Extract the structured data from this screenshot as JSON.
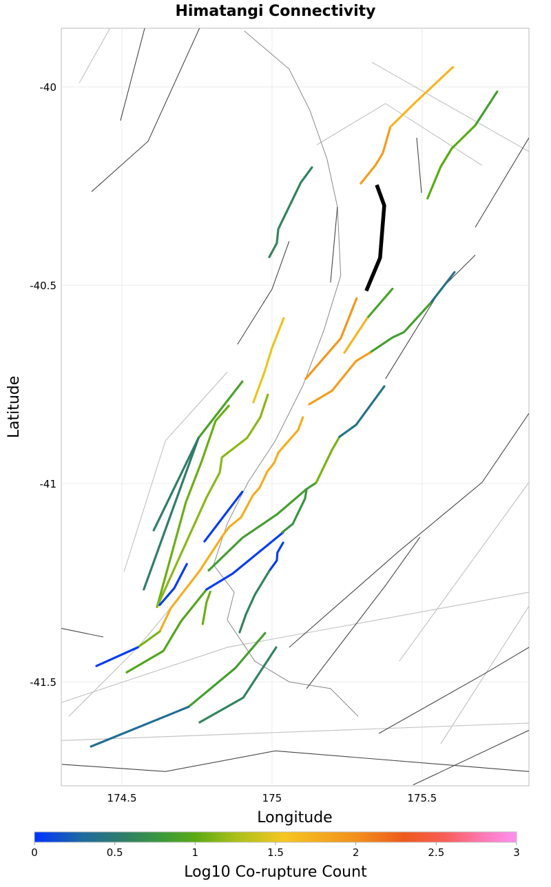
{
  "chart_data": {
    "type": "map",
    "title": "Himatangi Connectivity",
    "xlabel": "Longitude",
    "ylabel": "Latitude",
    "xlim": [
      174.298,
      175.856
    ],
    "ylim": [
      -41.762,
      -39.852
    ],
    "grid": true,
    "xticks": [
      {
        "value": 174.5,
        "label": "174.5"
      },
      {
        "value": 175,
        "label": "175"
      },
      {
        "value": 175.5,
        "label": "175.5"
      }
    ],
    "yticks": [
      {
        "value": -40,
        "label": "-40"
      },
      {
        "value": -40.5,
        "label": "-40.5"
      },
      {
        "value": -41,
        "label": "-41"
      },
      {
        "value": -41.5,
        "label": "-41.5"
      }
    ],
    "colorbar": {
      "label": "Log10 Co-rupture Count",
      "range": [
        0,
        3
      ],
      "placement": "bottom",
      "ticks": [
        {
          "value": 0,
          "label": "0"
        },
        {
          "value": 0.5,
          "label": "0.5"
        },
        {
          "value": 1,
          "label": "1"
        },
        {
          "value": 1.5,
          "label": "1.5"
        },
        {
          "value": 2,
          "label": "2"
        },
        {
          "value": 2.5,
          "label": "2.5"
        },
        {
          "value": 3,
          "label": "3"
        }
      ],
      "stops": [
        {
          "v": 0,
          "color": "#0033ff"
        },
        {
          "v": 0.3,
          "color": "#1f6a9e"
        },
        {
          "v": 0.55,
          "color": "#2f7d68"
        },
        {
          "v": 0.8,
          "color": "#3c9a38"
        },
        {
          "v": 1.0,
          "color": "#5aaa12"
        },
        {
          "v": 1.25,
          "color": "#a8c01a"
        },
        {
          "v": 1.55,
          "color": "#f6c620"
        },
        {
          "v": 2.0,
          "color": "#f2901c"
        },
        {
          "v": 2.3,
          "color": "#ee5a1c"
        },
        {
          "v": 2.55,
          "color": "#f85d55"
        },
        {
          "v": 2.8,
          "color": "#ff7ab8"
        },
        {
          "v": 3.0,
          "color": "#ff90f0"
        }
      ]
    },
    "target_color": "#000000",
    "target_section": [
      [
        175.349,
        -40.247
      ],
      [
        175.374,
        -40.299
      ],
      [
        175.36,
        -40.431
      ],
      [
        175.314,
        -40.514
      ]
    ],
    "coruptures": [
      {
        "value": 1.9,
        "pts": [
          [
            175.296,
            -40.243
          ],
          [
            175.344,
            -40.198
          ],
          [
            175.369,
            -40.167
          ],
          [
            175.394,
            -40.101
          ]
        ]
      },
      {
        "value": 1.7,
        "pts": [
          [
            175.394,
            -40.101
          ],
          [
            175.479,
            -40.038
          ],
          [
            175.603,
            -39.95
          ]
        ]
      },
      {
        "value": 0.85,
        "pts": [
          [
            175.75,
            -40.012
          ],
          [
            175.677,
            -40.097
          ]
        ]
      },
      {
        "value": 1.0,
        "pts": [
          [
            175.677,
            -40.097
          ],
          [
            175.599,
            -40.155
          ],
          [
            175.562,
            -40.201
          ],
          [
            175.518,
            -40.281
          ]
        ]
      },
      {
        "value": 0.6,
        "pts": [
          [
            175.133,
            -40.203
          ],
          [
            175.096,
            -40.241
          ],
          [
            175.021,
            -40.358
          ],
          [
            175.016,
            -40.394
          ],
          [
            174.991,
            -40.429
          ]
        ]
      },
      {
        "value": 1.5,
        "pts": [
          [
            175.039,
            -40.583
          ],
          [
            175.0,
            -40.658
          ],
          [
            174.975,
            -40.719
          ],
          [
            174.938,
            -40.795
          ]
        ]
      },
      {
        "value": 1.95,
        "pts": [
          [
            175.282,
            -40.533
          ],
          [
            175.229,
            -40.634
          ],
          [
            175.112,
            -40.736
          ]
        ]
      },
      {
        "value": 0.9,
        "pts": [
          [
            175.401,
            -40.509
          ],
          [
            175.317,
            -40.583
          ]
        ]
      },
      {
        "value": 1.7,
        "pts": [
          [
            175.317,
            -40.583
          ],
          [
            175.241,
            -40.67
          ]
        ]
      },
      {
        "value": 0.4,
        "pts": [
          [
            175.608,
            -40.467
          ],
          [
            175.528,
            -40.545
          ]
        ]
      },
      {
        "value": 0.85,
        "pts": [
          [
            175.528,
            -40.545
          ],
          [
            175.44,
            -40.618
          ],
          [
            175.401,
            -40.632
          ],
          [
            175.326,
            -40.67
          ]
        ]
      },
      {
        "value": 1.9,
        "pts": [
          [
            175.326,
            -40.67
          ],
          [
            175.28,
            -40.691
          ],
          [
            175.2,
            -40.766
          ],
          [
            175.124,
            -40.8
          ]
        ]
      },
      {
        "value": 0.9,
        "pts": [
          [
            174.901,
            -40.743
          ],
          [
            174.755,
            -40.885
          ]
        ]
      },
      {
        "value": 0.55,
        "pts": [
          [
            174.755,
            -40.885
          ],
          [
            174.606,
            -41.118
          ]
        ]
      },
      {
        "value": 0.55,
        "pts": [
          [
            174.755,
            -40.885
          ],
          [
            174.573,
            -41.267
          ]
        ]
      },
      {
        "value": 1.05,
        "pts": [
          [
            174.856,
            -40.804
          ],
          [
            174.812,
            -40.842
          ],
          [
            174.766,
            -40.943
          ],
          [
            174.713,
            -41.047
          ],
          [
            174.617,
            -41.311
          ]
        ]
      },
      {
        "value": 1.15,
        "pts": [
          [
            174.986,
            -40.776
          ],
          [
            174.961,
            -40.833
          ],
          [
            174.917,
            -40.885
          ],
          [
            174.833,
            -40.934
          ],
          [
            174.826,
            -40.972
          ],
          [
            174.782,
            -41.035
          ],
          [
            174.617,
            -41.311
          ]
        ]
      },
      {
        "value": 0.05,
        "pts": [
          [
            174.901,
            -41.021
          ],
          [
            174.775,
            -41.146
          ]
        ]
      },
      {
        "value": 0.05,
        "pts": [
          [
            174.716,
            -41.203
          ],
          [
            174.674,
            -41.264
          ],
          [
            174.626,
            -41.306
          ]
        ]
      },
      {
        "value": 1.75,
        "pts": [
          [
            175.103,
            -40.833
          ],
          [
            175.087,
            -40.865
          ],
          [
            175.021,
            -40.922
          ],
          [
            175.007,
            -40.948
          ],
          [
            174.984,
            -40.97
          ],
          [
            174.959,
            -41.01
          ],
          [
            174.936,
            -41.03
          ],
          [
            174.897,
            -41.085
          ],
          [
            174.858,
            -41.109
          ],
          [
            174.835,
            -41.132
          ],
          [
            174.759,
            -41.22
          ],
          [
            174.663,
            -41.314
          ],
          [
            174.626,
            -41.373
          ]
        ]
      },
      {
        "value": 1.1,
        "pts": [
          [
            174.626,
            -41.373
          ],
          [
            174.553,
            -41.413
          ]
        ]
      },
      {
        "value": 0.05,
        "pts": [
          [
            174.553,
            -41.413
          ],
          [
            174.415,
            -41.46
          ]
        ]
      },
      {
        "value": 0.95,
        "pts": [
          [
            174.782,
            -41.267
          ],
          [
            174.697,
            -41.347
          ],
          [
            174.638,
            -41.422
          ],
          [
            174.516,
            -41.476
          ]
        ]
      },
      {
        "value": 1.05,
        "pts": [
          [
            174.794,
            -41.273
          ],
          [
            174.782,
            -41.299
          ],
          [
            174.769,
            -41.354
          ]
        ]
      },
      {
        "value": 0.05,
        "pts": [
          [
            175.037,
            -41.123
          ],
          [
            174.869,
            -41.227
          ],
          [
            174.782,
            -41.267
          ]
        ]
      },
      {
        "value": 0.05,
        "pts": [
          [
            175.037,
            -41.149
          ],
          [
            175.018,
            -41.174
          ],
          [
            175.016,
            -41.194
          ],
          [
            174.991,
            -41.22
          ]
        ]
      },
      {
        "value": 0.6,
        "pts": [
          [
            174.991,
            -41.22
          ],
          [
            174.943,
            -41.28
          ],
          [
            174.913,
            -41.33
          ],
          [
            174.892,
            -41.375
          ]
        ]
      },
      {
        "value": 0.85,
        "pts": [
          [
            174.789,
            -41.219
          ],
          [
            174.901,
            -41.137
          ],
          [
            175.016,
            -41.078
          ],
          [
            175.115,
            -41.014
          ],
          [
            175.147,
            -40.998
          ]
        ]
      },
      {
        "value": 0.75,
        "pts": [
          [
            175.115,
            -41.014
          ],
          [
            175.11,
            -41.038
          ],
          [
            175.069,
            -41.102
          ],
          [
            175.034,
            -41.123
          ]
        ]
      },
      {
        "value": 1.1,
        "pts": [
          [
            175.147,
            -40.998
          ],
          [
            175.2,
            -40.915
          ],
          [
            175.225,
            -40.882
          ]
        ]
      },
      {
        "value": 0.4,
        "pts": [
          [
            175.225,
            -40.882
          ],
          [
            175.28,
            -40.852
          ],
          [
            175.374,
            -40.755
          ]
        ]
      },
      {
        "value": 0.85,
        "pts": [
          [
            174.977,
            -41.377
          ],
          [
            174.878,
            -41.465
          ],
          [
            174.722,
            -41.563
          ]
        ]
      },
      {
        "value": 0.35,
        "pts": [
          [
            174.722,
            -41.563
          ],
          [
            174.397,
            -41.663
          ]
        ]
      },
      {
        "value": 0.6,
        "pts": [
          [
            175.014,
            -41.413
          ],
          [
            174.904,
            -41.54
          ],
          [
            174.759,
            -41.602
          ]
        ]
      }
    ],
    "fault_traces": [
      [
        [
          174.399,
          -40.264
        ],
        [
          174.587,
          -40.137
        ],
        [
          174.759,
          -39.851
        ]
      ],
      [
        [
          174.495,
          -40.085
        ],
        [
          174.576,
          -39.851
        ]
      ],
      [
        [
          175.115,
          -41.517
        ],
        [
          175.378,
          -41.257
        ],
        [
          175.493,
          -41.135
        ]
      ],
      [
        [
          175.356,
          -41.63
        ],
        [
          175.7,
          -41.483
        ],
        [
          175.856,
          -41.413
        ]
      ],
      [
        [
          175.057,
          -41.413
        ],
        [
          175.424,
          -41.17
        ],
        [
          175.7,
          -40.997
        ],
        [
          175.856,
          -40.823
        ]
      ],
      [
        [
          174.3,
          -41.708
        ],
        [
          174.645,
          -41.726
        ],
        [
          175.011,
          -41.674
        ],
        [
          175.856,
          -41.726
        ]
      ],
      [
        [
          175.47,
          -41.76
        ],
        [
          175.856,
          -41.622
        ]
      ],
      [
        [
          174.885,
          -40.649
        ],
        [
          175.0,
          -40.51
        ],
        [
          175.057,
          -40.389
        ]
      ],
      [
        [
          175.195,
          -40.493
        ],
        [
          175.218,
          -40.302
        ]
      ],
      [
        [
          175.482,
          -40.128
        ],
        [
          175.498,
          -40.267
        ]
      ],
      [
        [
          175.677,
          -40.354
        ],
        [
          175.856,
          -40.128
        ]
      ],
      [
        [
          175.378,
          -40.736
        ],
        [
          175.562,
          -40.51
        ],
        [
          175.677,
          -40.424
        ]
      ],
      [
        [
          174.298,
          -41.365
        ],
        [
          174.438,
          -41.387
        ]
      ]
    ],
    "section_outlines": [
      [
        [
          174.298,
          -41.648
        ],
        [
          175.856,
          -41.604
        ]
      ],
      [
        [
          174.298,
          -41.552
        ],
        [
          174.851,
          -41.413
        ],
        [
          175.856,
          -41.274
        ]
      ],
      [
        [
          175.333,
          -39.938
        ],
        [
          175.856,
          -40.163
        ]
      ],
      [
        [
          175.149,
          -40.146
        ],
        [
          175.378,
          -40.042
        ],
        [
          175.7,
          -40.198
        ]
      ],
      [
        [
          174.507,
          -41.222
        ],
        [
          174.645,
          -40.892
        ],
        [
          174.851,
          -40.719
        ]
      ],
      [
        [
          174.323,
          -41.587
        ],
        [
          174.553,
          -41.413
        ],
        [
          174.667,
          -41.309
        ]
      ],
      [
        [
          175.424,
          -41.448
        ],
        [
          175.856,
          -40.997
        ]
      ],
      [
        [
          175.562,
          -41.656
        ],
        [
          175.856,
          -41.309
        ]
      ],
      [
        [
          174.358,
          -39.99
        ],
        [
          174.461,
          -39.851
        ]
      ]
    ],
    "coastline": [
      [
        174.908,
        -39.859
      ],
      [
        175.057,
        -39.955
      ],
      [
        175.126,
        -40.059
      ],
      [
        175.183,
        -40.181
      ],
      [
        175.218,
        -40.302
      ],
      [
        175.229,
        -40.476
      ],
      [
        175.172,
        -40.615
      ],
      [
        175.103,
        -40.753
      ],
      [
        175.011,
        -40.892
      ],
      [
        174.92,
        -40.997
      ],
      [
        174.851,
        -41.101
      ],
      [
        174.805,
        -41.205
      ],
      [
        174.874,
        -41.274
      ],
      [
        174.851,
        -41.344
      ],
      [
        174.943,
        -41.448
      ],
      [
        175.057,
        -41.5
      ],
      [
        175.195,
        -41.517
      ],
      [
        175.287,
        -41.587
      ]
    ]
  }
}
